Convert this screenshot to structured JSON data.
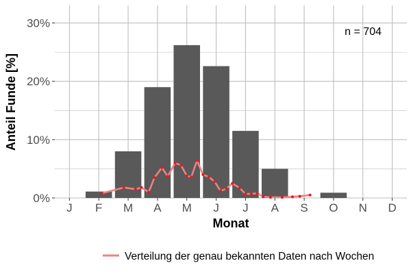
{
  "chart_data": {
    "type": "bar",
    "xlabel": "Monat",
    "ylabel": "Anteil Funde [%]",
    "categories": [
      "J",
      "F",
      "M",
      "A",
      "M",
      "J",
      "J",
      "A",
      "S",
      "O",
      "N",
      "D"
    ],
    "values": [
      0,
      1.1,
      8.0,
      19.0,
      26.2,
      22.6,
      11.5,
      5.0,
      0,
      0.9,
      0,
      0
    ],
    "ylim": [
      0,
      33
    ],
    "yticks": [
      0,
      10,
      20,
      30
    ],
    "ytick_labels": [
      "0%",
      "10%",
      "20%",
      "30%"
    ],
    "grid": true,
    "annotation": "n = 704",
    "legend": {
      "position": "bottom",
      "label": "Verteilung der genau bekannten Daten nach Wochen"
    },
    "series": [
      {
        "name": "Verteilung der genau bekannten Daten nach Wochen",
        "type": "line",
        "x": [
          2.1,
          2.85,
          3.25,
          3.45,
          3.7,
          3.9,
          4.15,
          4.35,
          4.6,
          4.8,
          5.0,
          5.15,
          5.35,
          5.55,
          5.75,
          5.95,
          6.15,
          6.35,
          6.55,
          6.8,
          7.0,
          7.2,
          7.4,
          7.6,
          7.85,
          8.25,
          8.6,
          8.85,
          9.2
        ],
        "y": [
          0.8,
          1.8,
          1.5,
          1.8,
          1.0,
          3.5,
          5.2,
          3.7,
          6.0,
          5.6,
          3.8,
          3.6,
          6.4,
          4.0,
          3.6,
          2.8,
          1.2,
          1.6,
          2.5,
          1.7,
          0.7,
          0.7,
          0.8,
          0.2,
          0.1,
          0.1,
          0.2,
          0.3,
          0.5
        ]
      }
    ],
    "colors": {
      "bar": "#595959",
      "line": "#f08080",
      "point": "#e41a1c",
      "grid": "#bebebe"
    }
  }
}
